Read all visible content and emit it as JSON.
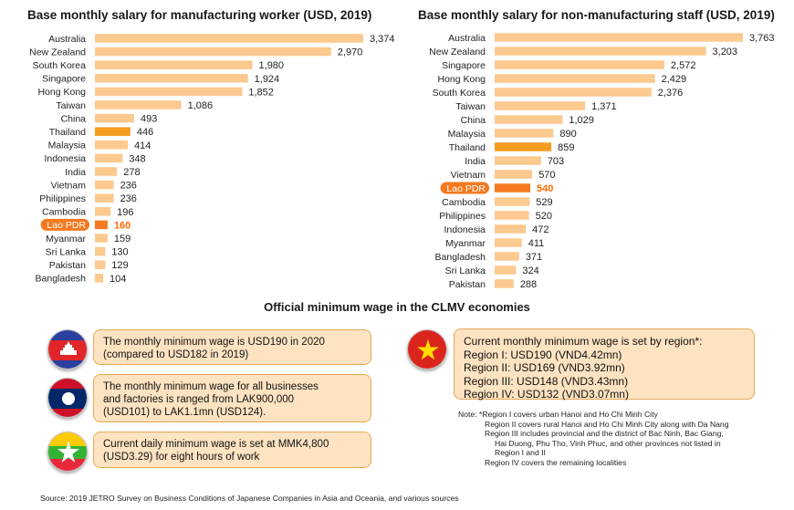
{
  "chart_data": [
    {
      "type": "bar",
      "orientation": "horizontal",
      "title": "Base monthly salary for manufacturing worker (USD, 2019)",
      "categories": [
        "Australia",
        "New Zealand",
        "South Korea",
        "Singapore",
        "Hong Kong",
        "Taiwan",
        "China",
        "Thailand",
        "Malaysia",
        "Indonesia",
        "India",
        "Vietnam",
        "Philippines",
        "Cambodia",
        "Lao PDR",
        "Myanmar",
        "Sri Lanka",
        "Pakistan",
        "Bangladesh"
      ],
      "values": [
        3374,
        2970,
        1980,
        1924,
        1852,
        1086,
        493,
        446,
        414,
        348,
        278,
        236,
        236,
        196,
        160,
        159,
        130,
        129,
        104
      ],
      "value_labels": [
        "3,374",
        "2,970",
        "1,980",
        "1,924",
        "1,852",
        "1,086",
        "493",
        "446",
        "414",
        "348",
        "278",
        "236",
        "236",
        "196",
        "160",
        "159",
        "130",
        "129",
        "104"
      ],
      "highlight": {
        "Thailand": "#f39c1f",
        "Lao PDR": "#f47920"
      },
      "bar_color": "#fcc98e",
      "xlim": [
        0,
        3374
      ]
    },
    {
      "type": "bar",
      "orientation": "horizontal",
      "title": "Base monthly salary for non-manufacturing staff (USD, 2019)",
      "categories": [
        "Australia",
        "New Zealand",
        "Singapore",
        "Hong Kong",
        "South Korea",
        "Taiwan",
        "China",
        "Malaysia",
        "Thailand",
        "India",
        "Vietnam",
        "Lao PDR",
        "Cambodia",
        "Philippines",
        "Indonesia",
        "Myanmar",
        "Bangladesh",
        "Sri Lanka",
        "Pakistan"
      ],
      "values": [
        3763,
        3203,
        2572,
        2429,
        2376,
        1371,
        1029,
        890,
        859,
        703,
        570,
        540,
        529,
        520,
        472,
        411,
        371,
        324,
        288
      ],
      "value_labels": [
        "3,763",
        "3,203",
        "2,572",
        "2,429",
        "2,376",
        "1,371",
        "1,029",
        "890",
        "859",
        "703",
        "570",
        "540",
        "529",
        "520",
        "472",
        "411",
        "371",
        "324",
        "288"
      ],
      "highlight": {
        "Thailand": "#f39c1f",
        "Lao PDR": "#f47920"
      },
      "bar_color": "#fcc98e",
      "xlim": [
        0,
        3763
      ]
    }
  ],
  "section_title": "Official minimum wage in the CLMV economies",
  "countries": {
    "cambodia": {
      "lines": [
        "The monthly minimum wage is USD190 in 2020",
        "(compared to USD182 in 2019)"
      ]
    },
    "laos": {
      "lines": [
        "The monthly minimum wage for all businesses",
        "and factories is ranged from LAK900,000",
        "(USD101) to LAK1.1mn (USD124)."
      ]
    },
    "myanmar": {
      "lines": [
        "Current daily minimum wage is set at MMK4,800",
        "(USD3.29) for eight hours of work"
      ]
    },
    "vietnam": {
      "lines": [
        "Current monthly minimum wage is set by region*:",
        "Region I:   USD190 (VND4.42mn)",
        "Region II:  USD169 (VND3.92mn)",
        "Region III: USD148 (VND3.43mn)",
        "Region IV: USD132 (VND3.07mn)"
      ]
    }
  },
  "note_lines": [
    "Note: *Region I covers urban Hanoi and Ho Chi Minh City",
    "Region II covers rural Hanoi and Ho Chi Minh City along with Da Nang",
    "Region III includes provincial and the district of Bac Ninh, Bac Giang,",
    "Hai Duong, Phu Tho, Vinh Phuc, and other provinces not listed in",
    "Region I and II",
    "Region IV covers the remaining  localities"
  ],
  "source": "Source: 2019 JETRO Survey on Business Conditions of Japanese Companies in Asia and Oceania, and various sources",
  "colors": {
    "bar": "#fcc98e",
    "thailand": "#f39c1f",
    "lao": "#f47920",
    "box_fill": "#fde3c1",
    "box_border": "#e6a95a"
  }
}
